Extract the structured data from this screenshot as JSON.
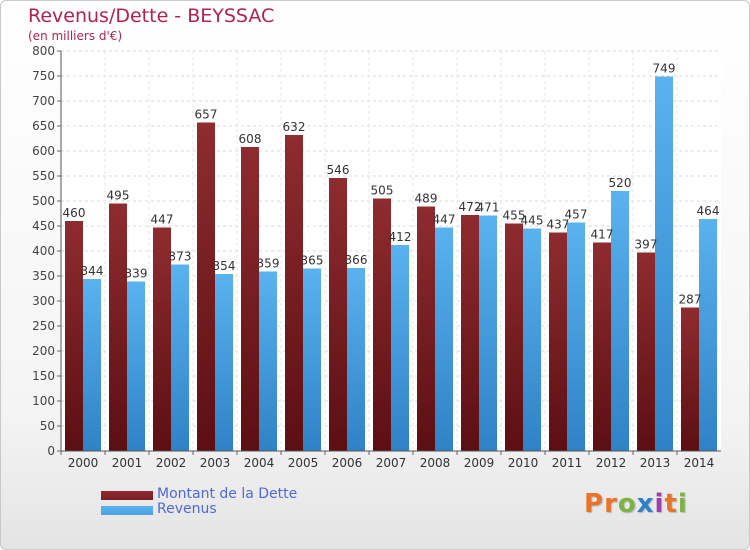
{
  "header": {
    "title": "Revenus/Dette - BEYSSAC",
    "subtitle": "(en milliers d'€)"
  },
  "colors": {
    "debt": "#7a1f22",
    "revenue": "#4aa3e2"
  },
  "logo": {
    "text": "Proxiti",
    "letter_colors": [
      "#e8732a",
      "#e8732a",
      "#7cb342",
      "#2f80c8",
      "#9c3fa6",
      "#e8732a",
      "#7cb342"
    ]
  },
  "chart_data": {
    "type": "bar",
    "categories": [
      "2000",
      "2001",
      "2002",
      "2003",
      "2004",
      "2005",
      "2006",
      "2007",
      "2008",
      "2009",
      "2010",
      "2011",
      "2012",
      "2013",
      "2014"
    ],
    "series": [
      {
        "name": "Montant de la Dette",
        "values": [
          460,
          495,
          447,
          657,
          608,
          632,
          546,
          505,
          489,
          472,
          455,
          437,
          417,
          397,
          287
        ]
      },
      {
        "name": "Revenus",
        "values": [
          344,
          339,
          373,
          354,
          359,
          365,
          366,
          412,
          447,
          471,
          445,
          457,
          520,
          749,
          464
        ]
      }
    ],
    "yticks": [
      "0",
      "50",
      "100",
      "150",
      "200",
      "250",
      "300",
      "350",
      "400",
      "450",
      "500",
      "550",
      "600",
      "650",
      "700",
      "750",
      "800"
    ],
    "ylim": [
      0,
      800
    ],
    "grid": true,
    "legend_position": "bottom-left"
  }
}
